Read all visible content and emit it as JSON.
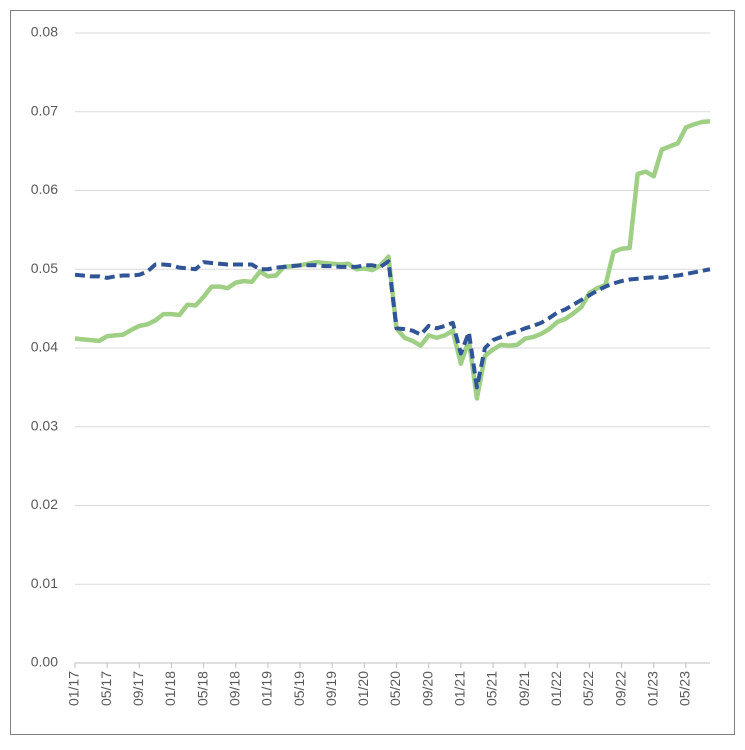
{
  "chart_data": {
    "type": "line",
    "categories": [
      "01/17",
      null,
      null,
      null,
      "05/17",
      null,
      null,
      null,
      "09/17",
      null,
      null,
      null,
      "01/18",
      null,
      null,
      null,
      "05/18",
      null,
      null,
      null,
      "09/18",
      null,
      null,
      null,
      "01/19",
      null,
      null,
      null,
      "05/19",
      null,
      null,
      null,
      "09/19",
      null,
      null,
      null,
      "01/20",
      null,
      null,
      null,
      "05/20",
      null,
      null,
      null,
      "09/20",
      null,
      null,
      null,
      "01/21",
      null,
      null,
      null,
      "05/21",
      null,
      null,
      null,
      "09/21",
      null,
      null,
      null,
      "01/22",
      null,
      null,
      null,
      "05/22",
      null,
      null,
      null,
      "09/22",
      null,
      null,
      null,
      "01/23",
      null,
      null,
      null,
      "05/23",
      null,
      null,
      null
    ],
    "series": [
      {
        "color": "#9fcf85",
        "dash": false,
        "values": [
          0.0412,
          0.0411,
          0.041,
          0.0409,
          0.0415,
          0.0416,
          0.0417,
          0.0423,
          0.0428,
          0.043,
          0.0435,
          0.0443,
          0.0443,
          0.0442,
          0.0455,
          0.0454,
          0.0465,
          0.0478,
          0.0478,
          0.0476,
          0.0483,
          0.0485,
          0.0484,
          0.0497,
          0.0491,
          0.0492,
          0.0503,
          0.0504,
          0.0505,
          0.0507,
          0.0509,
          0.0508,
          0.0507,
          0.0506,
          0.0507,
          0.05,
          0.0501,
          0.0499,
          0.0505,
          0.0516,
          0.0425,
          0.0413,
          0.0409,
          0.0403,
          0.0416,
          0.0413,
          0.0416,
          0.0422,
          0.038,
          0.041,
          0.0336,
          0.039,
          0.0398,
          0.0404,
          0.0403,
          0.0404,
          0.0412,
          0.0414,
          0.0418,
          0.0424,
          0.0433,
          0.0437,
          0.0444,
          0.0452,
          0.047,
          0.0476,
          0.048,
          0.0522,
          0.0526,
          0.0527,
          0.0621,
          0.0624,
          0.0618,
          0.0652,
          0.0656,
          0.066,
          0.068,
          0.0684,
          0.0687,
          0.0688
        ]
      },
      {
        "color": "#2f5597",
        "dash": true,
        "values": [
          0.0493,
          0.0492,
          0.0491,
          0.0491,
          0.0489,
          0.0491,
          0.0492,
          0.0492,
          0.0493,
          0.0497,
          0.0506,
          0.0506,
          0.0505,
          0.0502,
          0.0501,
          0.05,
          0.0509,
          0.0508,
          0.0507,
          0.0506,
          0.0506,
          0.0506,
          0.0506,
          0.05,
          0.05,
          0.0502,
          0.0503,
          0.0504,
          0.0505,
          0.0505,
          0.0505,
          0.0504,
          0.0504,
          0.0503,
          0.0503,
          0.0503,
          0.0505,
          0.0505,
          0.0503,
          0.051,
          0.0425,
          0.0424,
          0.0422,
          0.0417,
          0.0428,
          0.0425,
          0.0428,
          0.0432,
          0.0393,
          0.042,
          0.035,
          0.04,
          0.041,
          0.0414,
          0.0418,
          0.0421,
          0.0425,
          0.0428,
          0.0432,
          0.0438,
          0.0445,
          0.0449,
          0.0455,
          0.0461,
          0.0467,
          0.0473,
          0.0478,
          0.0482,
          0.0485,
          0.0487,
          0.0488,
          0.0489,
          0.049,
          0.0489,
          0.0491,
          0.0492,
          0.0494,
          0.0496,
          0.0498,
          0.05
        ]
      }
    ],
    "ylim": [
      0,
      0.08
    ],
    "yticks": [
      {
        "value": 0,
        "label": "0.00"
      },
      0.01,
      0.02,
      0.03,
      0.04,
      0.05,
      0.06,
      0.07,
      0.08
    ],
    "grid": true
  }
}
